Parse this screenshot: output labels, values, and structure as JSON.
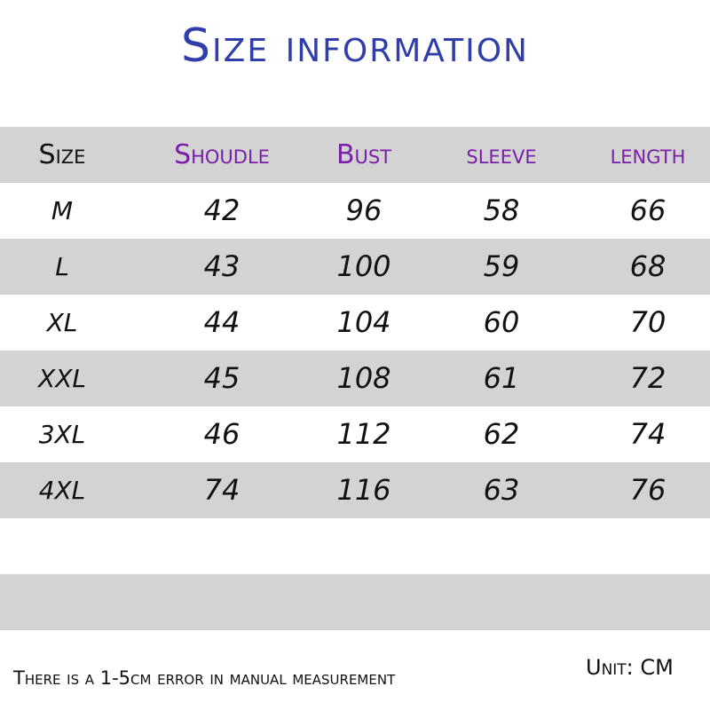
{
  "title": "Size information",
  "table": {
    "headers": [
      "Size",
      "Shoudle",
      "Bust",
      "sleeve",
      "length"
    ],
    "rows": [
      [
        "M",
        "42",
        "96",
        "58",
        "66"
      ],
      [
        "L",
        "43",
        "100",
        "59",
        "68"
      ],
      [
        "XL",
        "44",
        "104",
        "60",
        "70"
      ],
      [
        "XXL",
        "45",
        "108",
        "61",
        "72"
      ],
      [
        "3XL",
        "46",
        "112",
        "62",
        "74"
      ],
      [
        "4XL",
        "74",
        "116",
        "63",
        "76"
      ]
    ]
  },
  "footer": {
    "note": "There is a 1-5cm error in manual measurement",
    "unit": "Unit: CM"
  },
  "colors": {
    "title": "#2f3eab",
    "header_text": "#7a1fa8",
    "band": "#d3d3d3"
  }
}
